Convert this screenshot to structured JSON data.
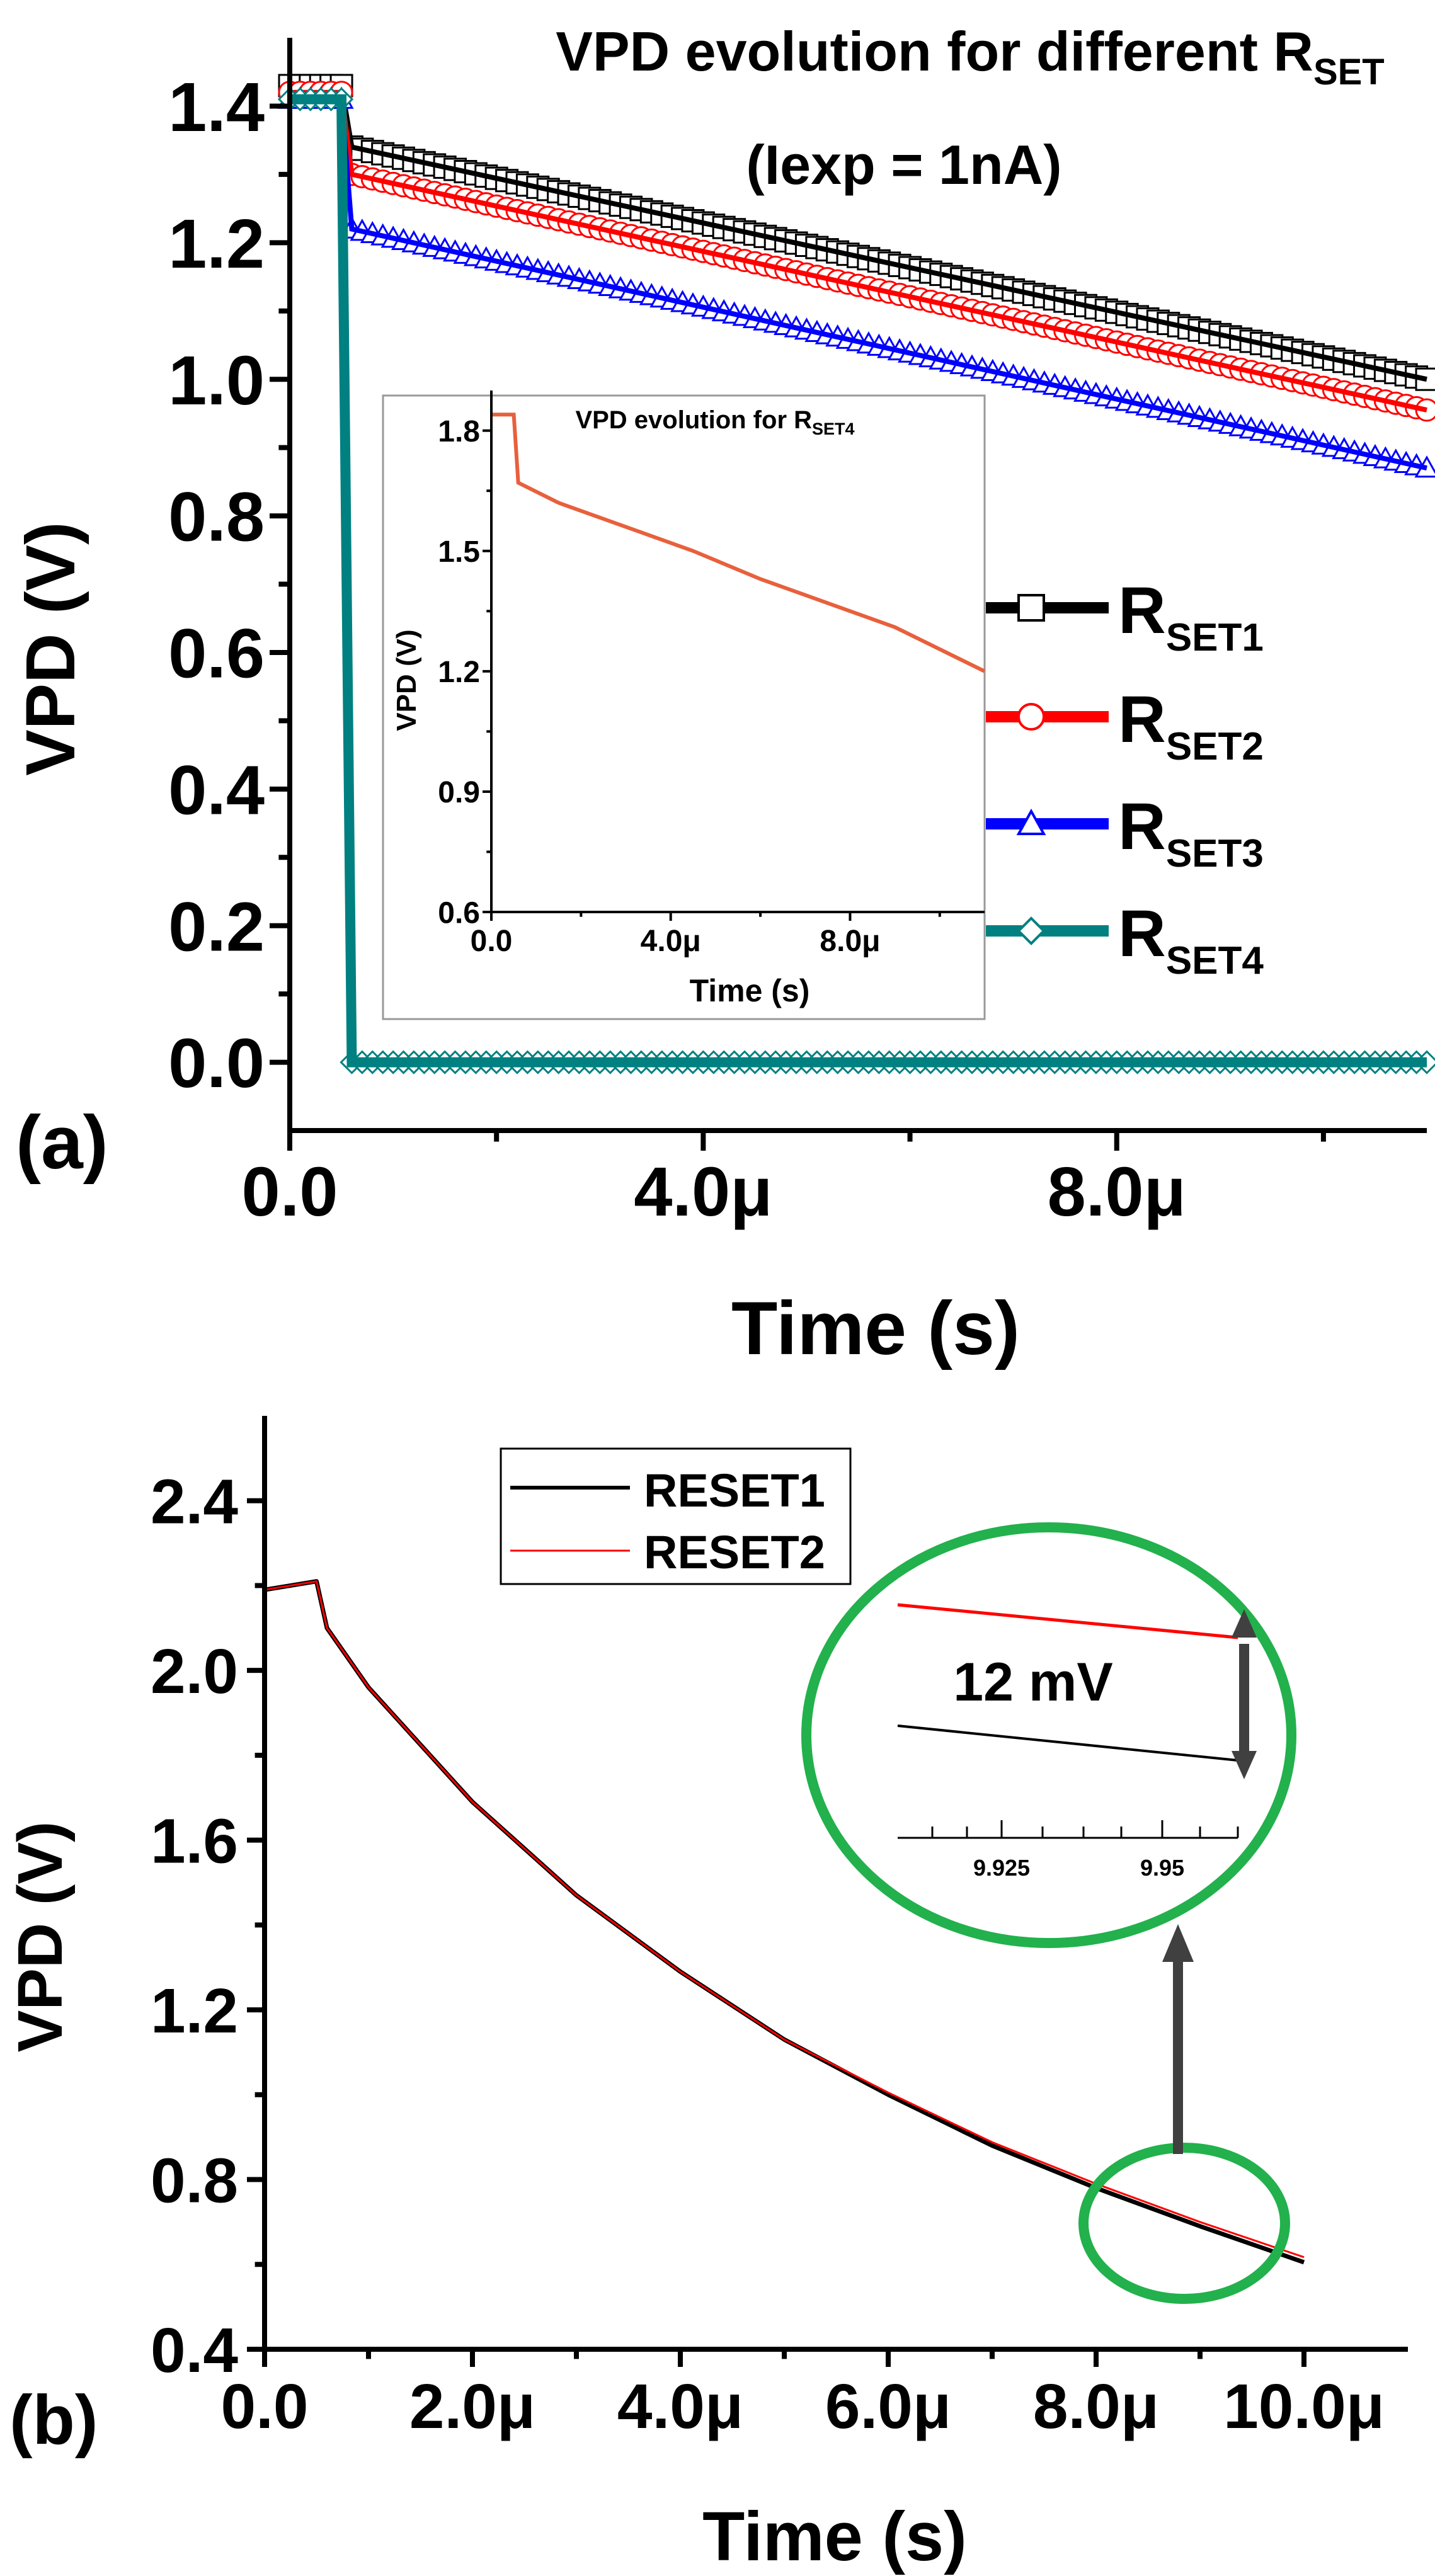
{
  "chart_data": [
    {
      "type": "line",
      "panel_label": "(a)",
      "title_main": "VPD evolution for different R",
      "title_sub": "SET",
      "title_line2": "(Iexp = 1nA)",
      "xlabel": "Time (s)",
      "ylabel": "VPD (V)",
      "xlim": [
        0,
        1.1e-05
      ],
      "ylim": [
        -0.1,
        1.5
      ],
      "x_ticks": [
        0,
        4e-06,
        8e-06
      ],
      "x_tick_labels": [
        "0.0",
        "4.0μ",
        "8.0μ"
      ],
      "y_ticks": [
        0,
        0.2,
        0.4,
        0.6,
        0.8,
        1.0,
        1.2,
        1.4
      ],
      "y_tick_labels": [
        "0.0",
        "0.2",
        "0.4",
        "0.6",
        "0.8",
        "1.0",
        "1.2",
        "1.4"
      ],
      "series": [
        {
          "name": "R",
          "sub": "SET1",
          "color": "#000000",
          "marker": "square",
          "x": [
            0,
            5e-07,
            6e-07,
            1.1e-05
          ],
          "y": [
            1.43,
            1.43,
            1.34,
            1.0
          ]
        },
        {
          "name": "R",
          "sub": "SET2",
          "color": "#ff0000",
          "marker": "circle",
          "x": [
            0,
            5e-07,
            6e-07,
            1.1e-05
          ],
          "y": [
            1.42,
            1.42,
            1.3,
            0.955
          ]
        },
        {
          "name": "R",
          "sub": "SET3",
          "color": "#0000ff",
          "marker": "triangle",
          "x": [
            0,
            5e-07,
            6e-07,
            1.1e-05
          ],
          "y": [
            1.41,
            1.41,
            1.22,
            0.87
          ]
        },
        {
          "name": "R",
          "sub": "SET4",
          "color": "#008080",
          "marker": "diamond",
          "x": [
            0,
            5e-07,
            6e-07,
            1.1e-05
          ],
          "y": [
            1.41,
            1.41,
            0.0,
            0.0
          ]
        }
      ],
      "legend_position": "right",
      "inset": {
        "type": "line",
        "title_main": "VPD evolution for R",
        "title_sub": "SET4",
        "xlabel": "Time (s)",
        "ylabel": "VPD (V)",
        "xlim": [
          0,
          1.1e-05
        ],
        "ylim": [
          0.6,
          1.9
        ],
        "x_ticks": [
          0,
          4e-06,
          8e-06
        ],
        "x_tick_labels": [
          "0.0",
          "4.0μ",
          "8.0μ"
        ],
        "y_ticks": [
          0.6,
          0.9,
          1.2,
          1.5,
          1.8
        ],
        "y_tick_labels": [
          "0.6",
          "0.9",
          "1.2",
          "1.5",
          "1.8"
        ],
        "color": "#e8603c",
        "x": [
          0,
          5e-07,
          5e-07,
          6e-07,
          1.5e-06,
          3e-06,
          4.5e-06,
          6e-06,
          7.5e-06,
          9e-06,
          1.1e-05
        ],
        "y": [
          1.84,
          1.84,
          1.84,
          1.67,
          1.62,
          1.56,
          1.5,
          1.43,
          1.37,
          1.31,
          1.2
        ]
      }
    },
    {
      "type": "line",
      "panel_label": "(b)",
      "xlabel": "Time (s)",
      "ylabel": "VPD (V)",
      "xlim": [
        0,
        1.1e-05
      ],
      "ylim": [
        0.4,
        2.6
      ],
      "x_ticks": [
        0,
        2e-06,
        4e-06,
        6e-06,
        8e-06,
        1e-05
      ],
      "x_tick_labels": [
        "0.0",
        "2.0μ",
        "4.0μ",
        "6.0μ",
        "8.0μ",
        "10.0μ"
      ],
      "y_ticks": [
        0.4,
        0.8,
        1.2,
        1.6,
        2.0,
        2.4
      ],
      "y_tick_labels": [
        "0.4",
        "0.8",
        "1.2",
        "1.6",
        "2.0",
        "2.4"
      ],
      "series": [
        {
          "name": "RESET1",
          "color": "#000000",
          "x": [
            0,
            5e-07,
            6e-07,
            1e-06,
            2e-06,
            3e-06,
            4e-06,
            5e-06,
            6e-06,
            7e-06,
            8e-06,
            9e-06,
            1e-05
          ],
          "y": [
            2.19,
            2.21,
            2.1,
            1.96,
            1.69,
            1.47,
            1.29,
            1.13,
            1.0,
            0.88,
            0.78,
            0.69,
            0.605
          ]
        },
        {
          "name": "RESET2",
          "color": "#ff0000",
          "x": [
            0,
            5e-07,
            6e-07,
            1e-06,
            2e-06,
            3e-06,
            4e-06,
            5e-06,
            6e-06,
            7e-06,
            8e-06,
            9e-06,
            1e-05
          ],
          "y": [
            2.19,
            2.21,
            2.1,
            1.96,
            1.69,
            1.47,
            1.29,
            1.13,
            1.005,
            0.888,
            0.79,
            0.7,
            0.617
          ]
        }
      ],
      "legend_position": "top-left",
      "zoom_annotation": {
        "difference_label": "12 mV",
        "tick_labels": [
          "9.925",
          "9.95"
        ]
      }
    }
  ]
}
